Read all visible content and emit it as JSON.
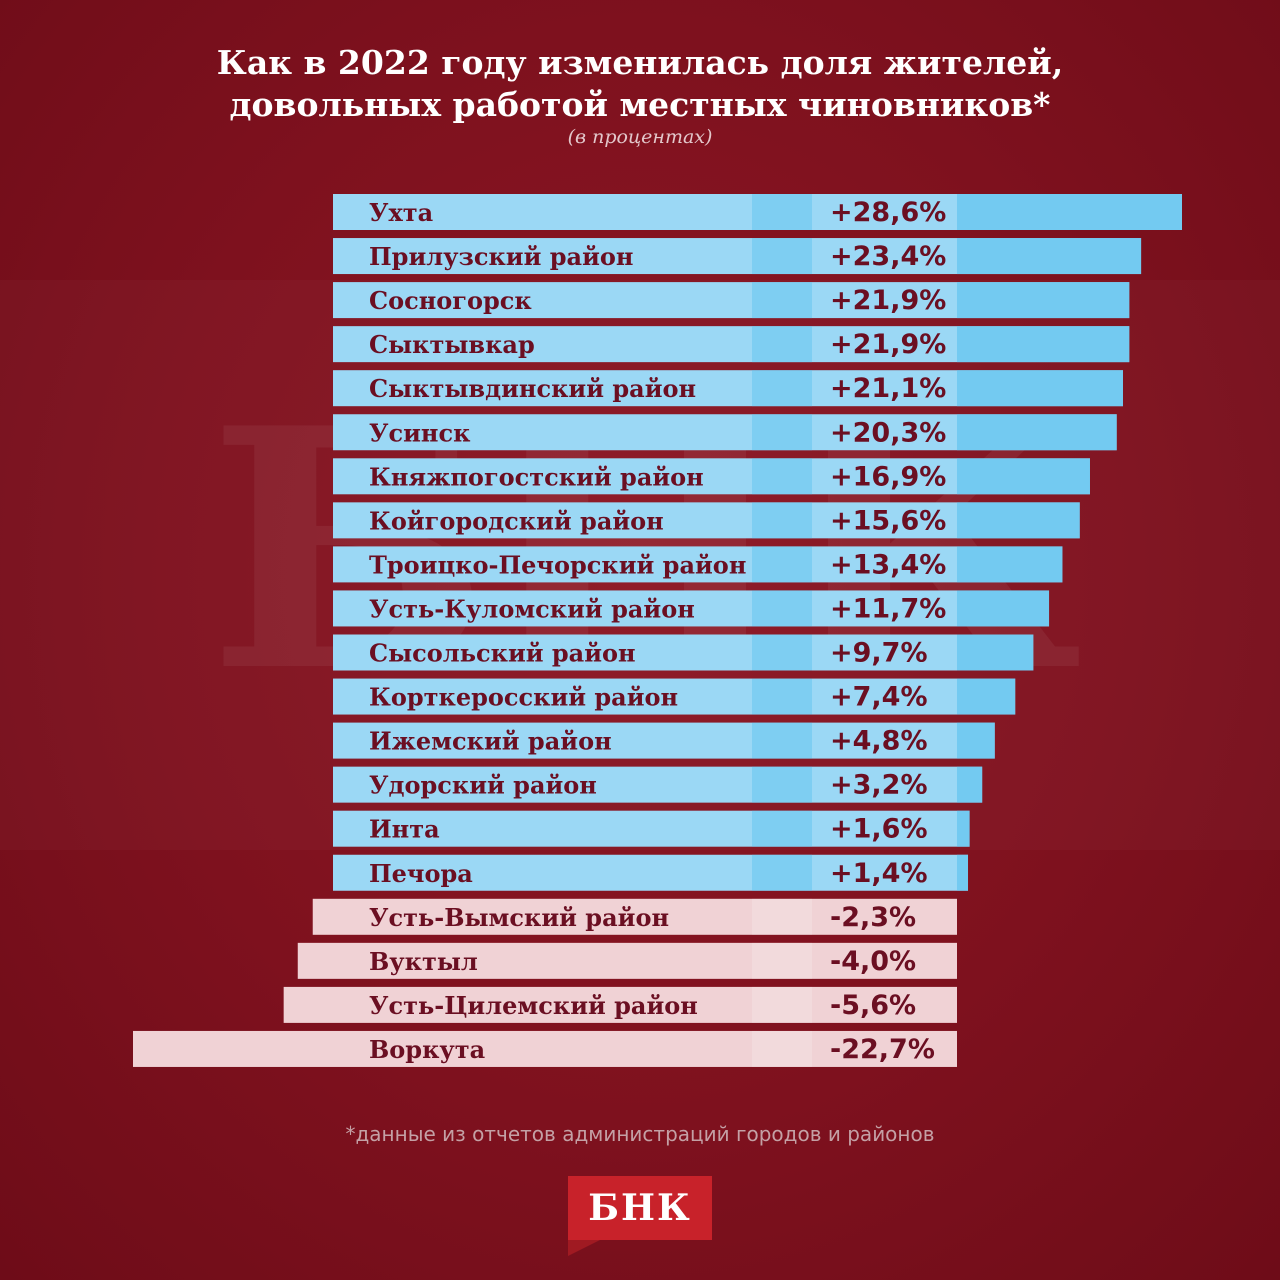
{
  "title_line1": "Как в 2022 году изменилась доля жителей,",
  "title_line2": "довольных работой местных чиновников*",
  "subtitle": "(в процентах)",
  "footnote": "*данные из отчетов администраций городов и районов",
  "logo_text": "БНК",
  "watermark_text": "БНК",
  "colors": {
    "positive_bar": "#9bd8f5",
    "positive_accent": "#66c6ef",
    "negative_bar": "#f0d2d5",
    "label_text": "#6b0f22",
    "background": "#7e111e"
  },
  "chart_data": {
    "type": "bar",
    "orientation": "horizontal",
    "title": "Как в 2022 году изменилась доля жителей, довольных работой местных чиновников*",
    "subtitle": "(в процентах)",
    "categories": [
      "Ухта",
      "Прилузский район",
      "Сосногорск",
      "Сыктывкар",
      "Сыктывдинский район",
      "Усинск",
      "Княжпогостский район",
      "Койгородский район",
      "Троицко-Печорский район",
      "Усть-Куломский район",
      "Сысольский район",
      "Корткеросский район",
      "Ижемский район",
      "Удорский район",
      "Инта",
      "Печора",
      "Усть-Вымский район",
      "Вуктыл",
      "Усть-Цилемский район",
      "Воркута"
    ],
    "values": [
      28.6,
      23.4,
      21.9,
      21.9,
      21.1,
      20.3,
      16.9,
      15.6,
      13.4,
      11.7,
      9.7,
      7.4,
      4.8,
      3.2,
      1.6,
      1.4,
      -2.3,
      -4.0,
      -5.6,
      -22.7
    ],
    "value_labels": [
      "+28,6%",
      "+23,4%",
      "+21,9%",
      "+21,9%",
      "+21,1%",
      "+20,3%",
      "+16,9%",
      "+15,6%",
      "+13,4%",
      "+11,7%",
      "+9,7%",
      "+7,4%",
      "+4,8%",
      "+3,2%",
      "+1,6%",
      "+1,4%",
      "-2,3%",
      "-4,0%",
      "-5,6%",
      "-22,7%"
    ]
  }
}
